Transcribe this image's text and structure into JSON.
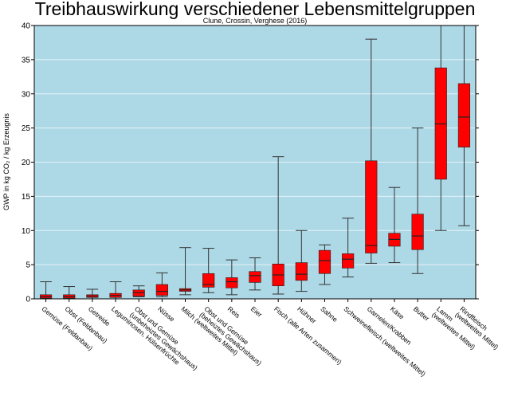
{
  "chart_data": {
    "type": "box",
    "title": "Treibhauswirkung verschiedener Lebensmittelgruppen",
    "subtitle": "Clune, Crossin, Verghese (2016)",
    "y_label": "GWP in kg CO₂ / kg Erzeugnis",
    "categories": [
      [
        "Gemüse (Feldanbau)"
      ],
      [
        "Obst (Feldanbau)"
      ],
      [
        "Getreide"
      ],
      [
        "Leguminosen, Hülsenfrüchte"
      ],
      [
        "Obst und Gemüse",
        "(unbeheiztes Gewächshaus)"
      ],
      [
        "Nüsse"
      ],
      [
        "Milch (weltweites Mittel)"
      ],
      [
        "Obst und Gemüse",
        "(beheiztes Gewächshaus)"
      ],
      [
        "Reis"
      ],
      [
        "Eier"
      ],
      [
        "Fisch (alle Arten zusammen)"
      ],
      [
        "Hühner"
      ],
      [
        "Sahne"
      ],
      [
        "Schweinefleisch (weltweites Mittel)"
      ],
      [
        "Garnelen/Krabben"
      ],
      [
        "Käse"
      ],
      [
        "Butter"
      ],
      [
        "Lamm",
        "(weltweites Mittel)"
      ],
      [
        "Rindfleisch",
        "(weltweites Mittel)"
      ]
    ],
    "min": [
      0,
      0,
      0,
      0,
      0.3,
      0.3,
      0.6,
      0.9,
      0.6,
      1.3,
      0.7,
      1.1,
      2.1,
      3.2,
      5.2,
      5.3,
      3.7,
      10,
      10.7
    ],
    "q1": [
      0.1,
      0.1,
      0.2,
      0.2,
      0.4,
      0.5,
      1.1,
      1.7,
      1.6,
      2.4,
      1.9,
      2.7,
      3.7,
      4.5,
      6.7,
      7.7,
      7.2,
      17.5,
      22.2
    ],
    "median": [
      0.3,
      0.3,
      0.4,
      0.5,
      0.9,
      1.1,
      1.3,
      2.1,
      2.5,
      3.4,
      3.5,
      3.6,
      5.6,
      5.8,
      7.8,
      8.7,
      9.2,
      25.6,
      26.6
    ],
    "q3": [
      0.6,
      0.6,
      0.6,
      0.8,
      1.3,
      2.1,
      1.5,
      3.7,
      3.1,
      4.0,
      5.1,
      5.3,
      7.1,
      6.6,
      20.2,
      9.6,
      12.4,
      33.8,
      31.5
    ],
    "max": [
      2.5,
      1.8,
      1.4,
      2.5,
      1.9,
      3.8,
      7.5,
      7.4,
      5.7,
      6.0,
      20.8,
      10.0,
      7.9,
      11.8,
      38,
      16.3,
      25,
      40,
      40
    ],
    "color": "#ff0000",
    "background": "#add8e6",
    "ylim": [
      0,
      40
    ],
    "yticks": [
      0,
      5,
      10,
      15,
      20,
      25,
      30,
      35,
      40
    ],
    "grid": true
  }
}
